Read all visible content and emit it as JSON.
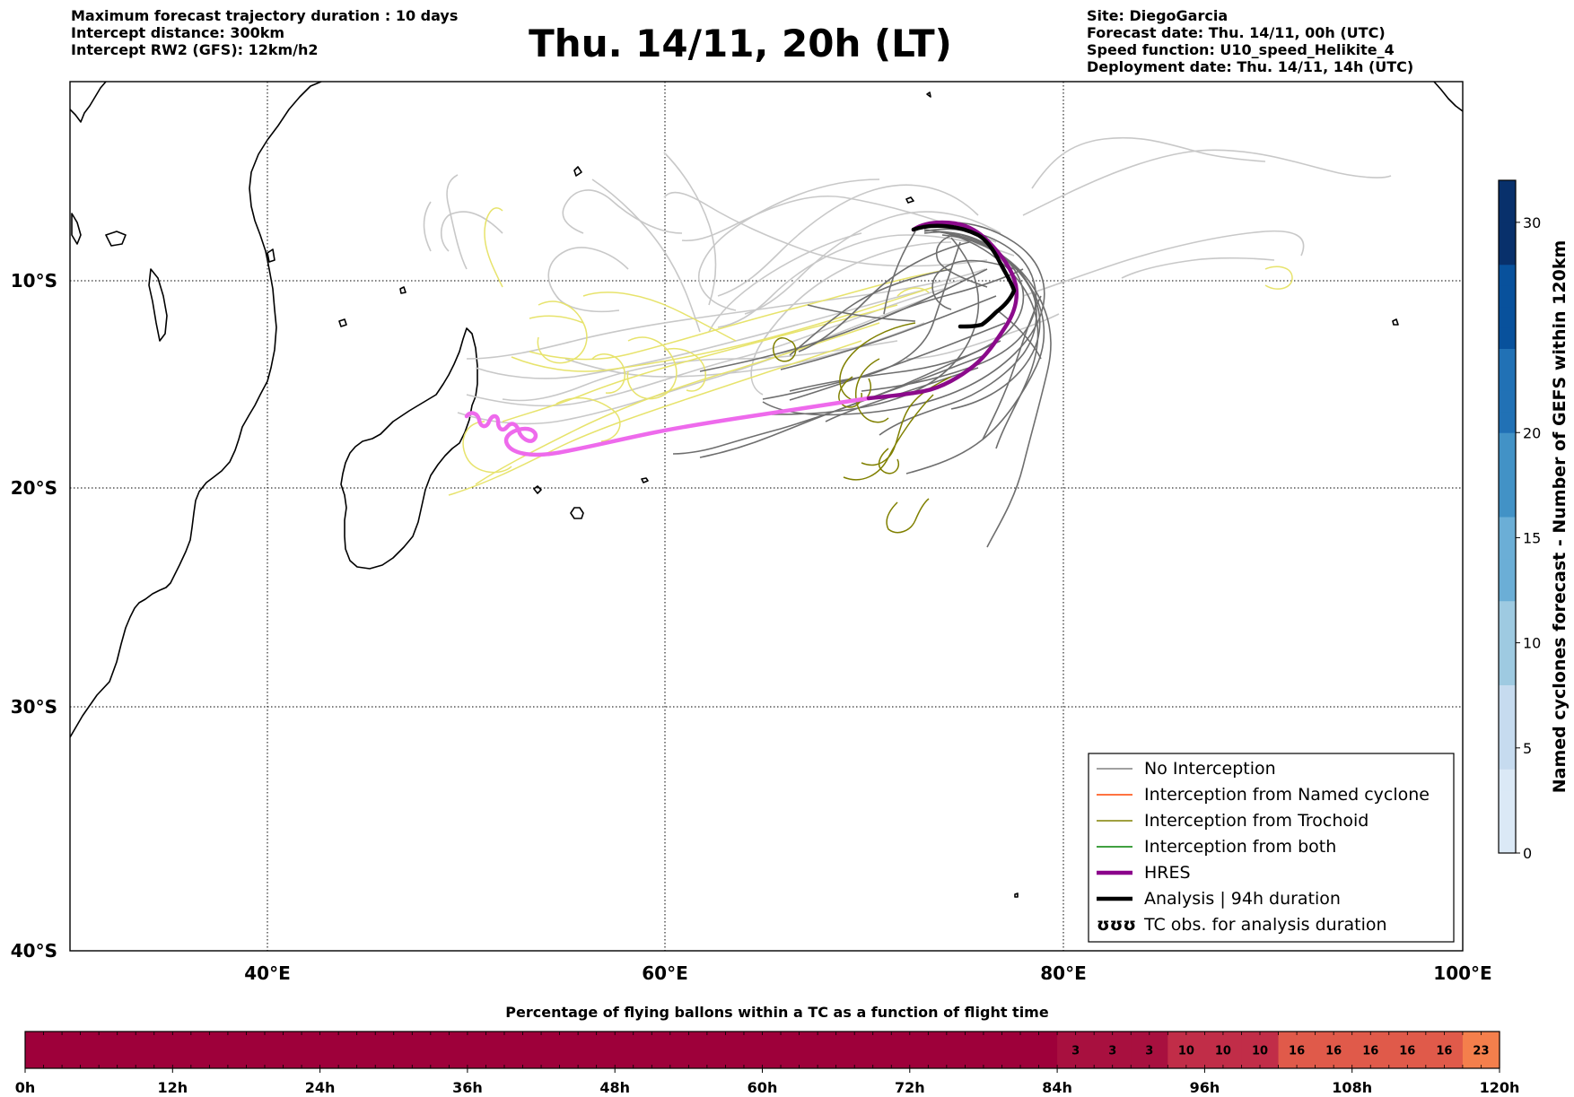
{
  "header_left": [
    "Maximum forecast trajectory duration : 10 days",
    "Intercept distance: 300km",
    "Intercept RW2 (GFS):  12km/h2"
  ],
  "header_right": [
    "Site: DiegoGarcia",
    "Forecast date: Thu. 14/11, 00h (UTC)",
    "Speed function: U10_speed_Helikite_4",
    "Deployment date: Thu. 14/11, 14h (UTC)"
  ],
  "title": "Thu. 14/11, 20h (LT)",
  "map": {
    "lon_range": [
      30,
      100
    ],
    "lat_range": [
      -40,
      -0.3
    ],
    "lon_ticks": [
      {
        "value": 40,
        "label": "40°E"
      },
      {
        "value": 60,
        "label": "60°E"
      },
      {
        "value": 80,
        "label": "80°E"
      },
      {
        "value": 100,
        "label": "100°E"
      }
    ],
    "lat_ticks": [
      {
        "value": -10,
        "label": "10°S"
      },
      {
        "value": -20,
        "label": "20°S"
      },
      {
        "value": -30,
        "label": "30°S"
      },
      {
        "value": -40,
        "label": "40°S"
      }
    ],
    "grid": "dotted"
  },
  "legend": {
    "placement": "lower-right",
    "entries": [
      {
        "label": "No Interception",
        "color": "#808080",
        "style": "thin-line"
      },
      {
        "label": "Interception from Named cyclone",
        "color": "#ff4500",
        "style": "thin-line"
      },
      {
        "label": "Interception from Trochoid",
        "color": "#808000",
        "style": "thin-line"
      },
      {
        "label": "Interception from both",
        "color": "#008000",
        "style": "thin-line"
      },
      {
        "label": "HRES",
        "color": "#8b008b",
        "style": "thick-line"
      },
      {
        "label": "Analysis | 94h duration",
        "color": "#000000",
        "style": "thick-line"
      },
      {
        "label": "TC obs. for analysis duration",
        "color": "#000000",
        "style": "cyclone-symbols",
        "symbol": "ʊʊʊ"
      }
    ]
  },
  "colorbar_right": {
    "label": "Named cyclones forecast - Number of GEFS within 120km",
    "min": 0,
    "max": 32,
    "ticks": [
      0,
      5,
      10,
      15,
      20,
      30
    ],
    "colors": [
      "#dbe9f6",
      "#c6dbef",
      "#9ecae1",
      "#6baed6",
      "#4292c6",
      "#2171b5",
      "#08519c",
      "#08306b"
    ]
  },
  "colorbar_bottom": {
    "title": "Percentage of flying ballons within a TC as a function of flight time",
    "bins_per_6h": 40,
    "time_labels": [
      "0h",
      "12h",
      "24h",
      "36h",
      "48h",
      "60h",
      "72h",
      "84h",
      "96h",
      "108h",
      "120h"
    ],
    "cells": [
      {
        "value": 0,
        "color": "#9e003a"
      },
      {
        "value": 0,
        "color": "#9e003a"
      },
      {
        "value": 0,
        "color": "#9e003a"
      },
      {
        "value": 0,
        "color": "#9e003a"
      },
      {
        "value": 0,
        "color": "#9e003a"
      },
      {
        "value": 0,
        "color": "#9e003a"
      },
      {
        "value": 0,
        "color": "#9e003a"
      },
      {
        "value": 0,
        "color": "#9e003a"
      },
      {
        "value": 0,
        "color": "#9e003a"
      },
      {
        "value": 0,
        "color": "#9e003a"
      },
      {
        "value": 0,
        "color": "#9e003a"
      },
      {
        "value": 0,
        "color": "#9e003a"
      },
      {
        "value": 0,
        "color": "#9e003a"
      },
      {
        "value": 0,
        "color": "#9e003a"
      },
      {
        "value": 0,
        "color": "#9e003a"
      },
      {
        "value": 0,
        "color": "#9e003a"
      },
      {
        "value": 0,
        "color": "#9e003a"
      },
      {
        "value": 0,
        "color": "#9e003a"
      },
      {
        "value": 0,
        "color": "#9e003a"
      },
      {
        "value": 0,
        "color": "#9e003a"
      },
      {
        "value": 0,
        "color": "#9e003a"
      },
      {
        "value": 0,
        "color": "#9e003a"
      },
      {
        "value": 0,
        "color": "#9e003a"
      },
      {
        "value": 0,
        "color": "#9e003a"
      },
      {
        "value": 0,
        "color": "#9e003a"
      },
      {
        "value": 0,
        "color": "#9e003a"
      },
      {
        "value": 0,
        "color": "#9e003a"
      },
      {
        "value": 0,
        "color": "#9e003a"
      },
      {
        "value": 3,
        "label": "3",
        "color": "#a8103f"
      },
      {
        "value": 3,
        "label": "3",
        "color": "#a8103f"
      },
      {
        "value": 3,
        "label": "3",
        "color": "#a8103f"
      },
      {
        "value": 10,
        "label": "10",
        "color": "#c12d48"
      },
      {
        "value": 10,
        "label": "10",
        "color": "#c12d48"
      },
      {
        "value": 10,
        "label": "10",
        "color": "#c12d48"
      },
      {
        "value": 16,
        "label": "16",
        "color": "#e05a4a"
      },
      {
        "value": 16,
        "label": "16",
        "color": "#e05a4a"
      },
      {
        "value": 16,
        "label": "16",
        "color": "#e05a4a"
      },
      {
        "value": 16,
        "label": "16",
        "color": "#e05a4a"
      },
      {
        "value": 16,
        "label": "16",
        "color": "#e05a4a"
      },
      {
        "value": 23,
        "label": "23",
        "color": "#f47f4c"
      }
    ]
  }
}
